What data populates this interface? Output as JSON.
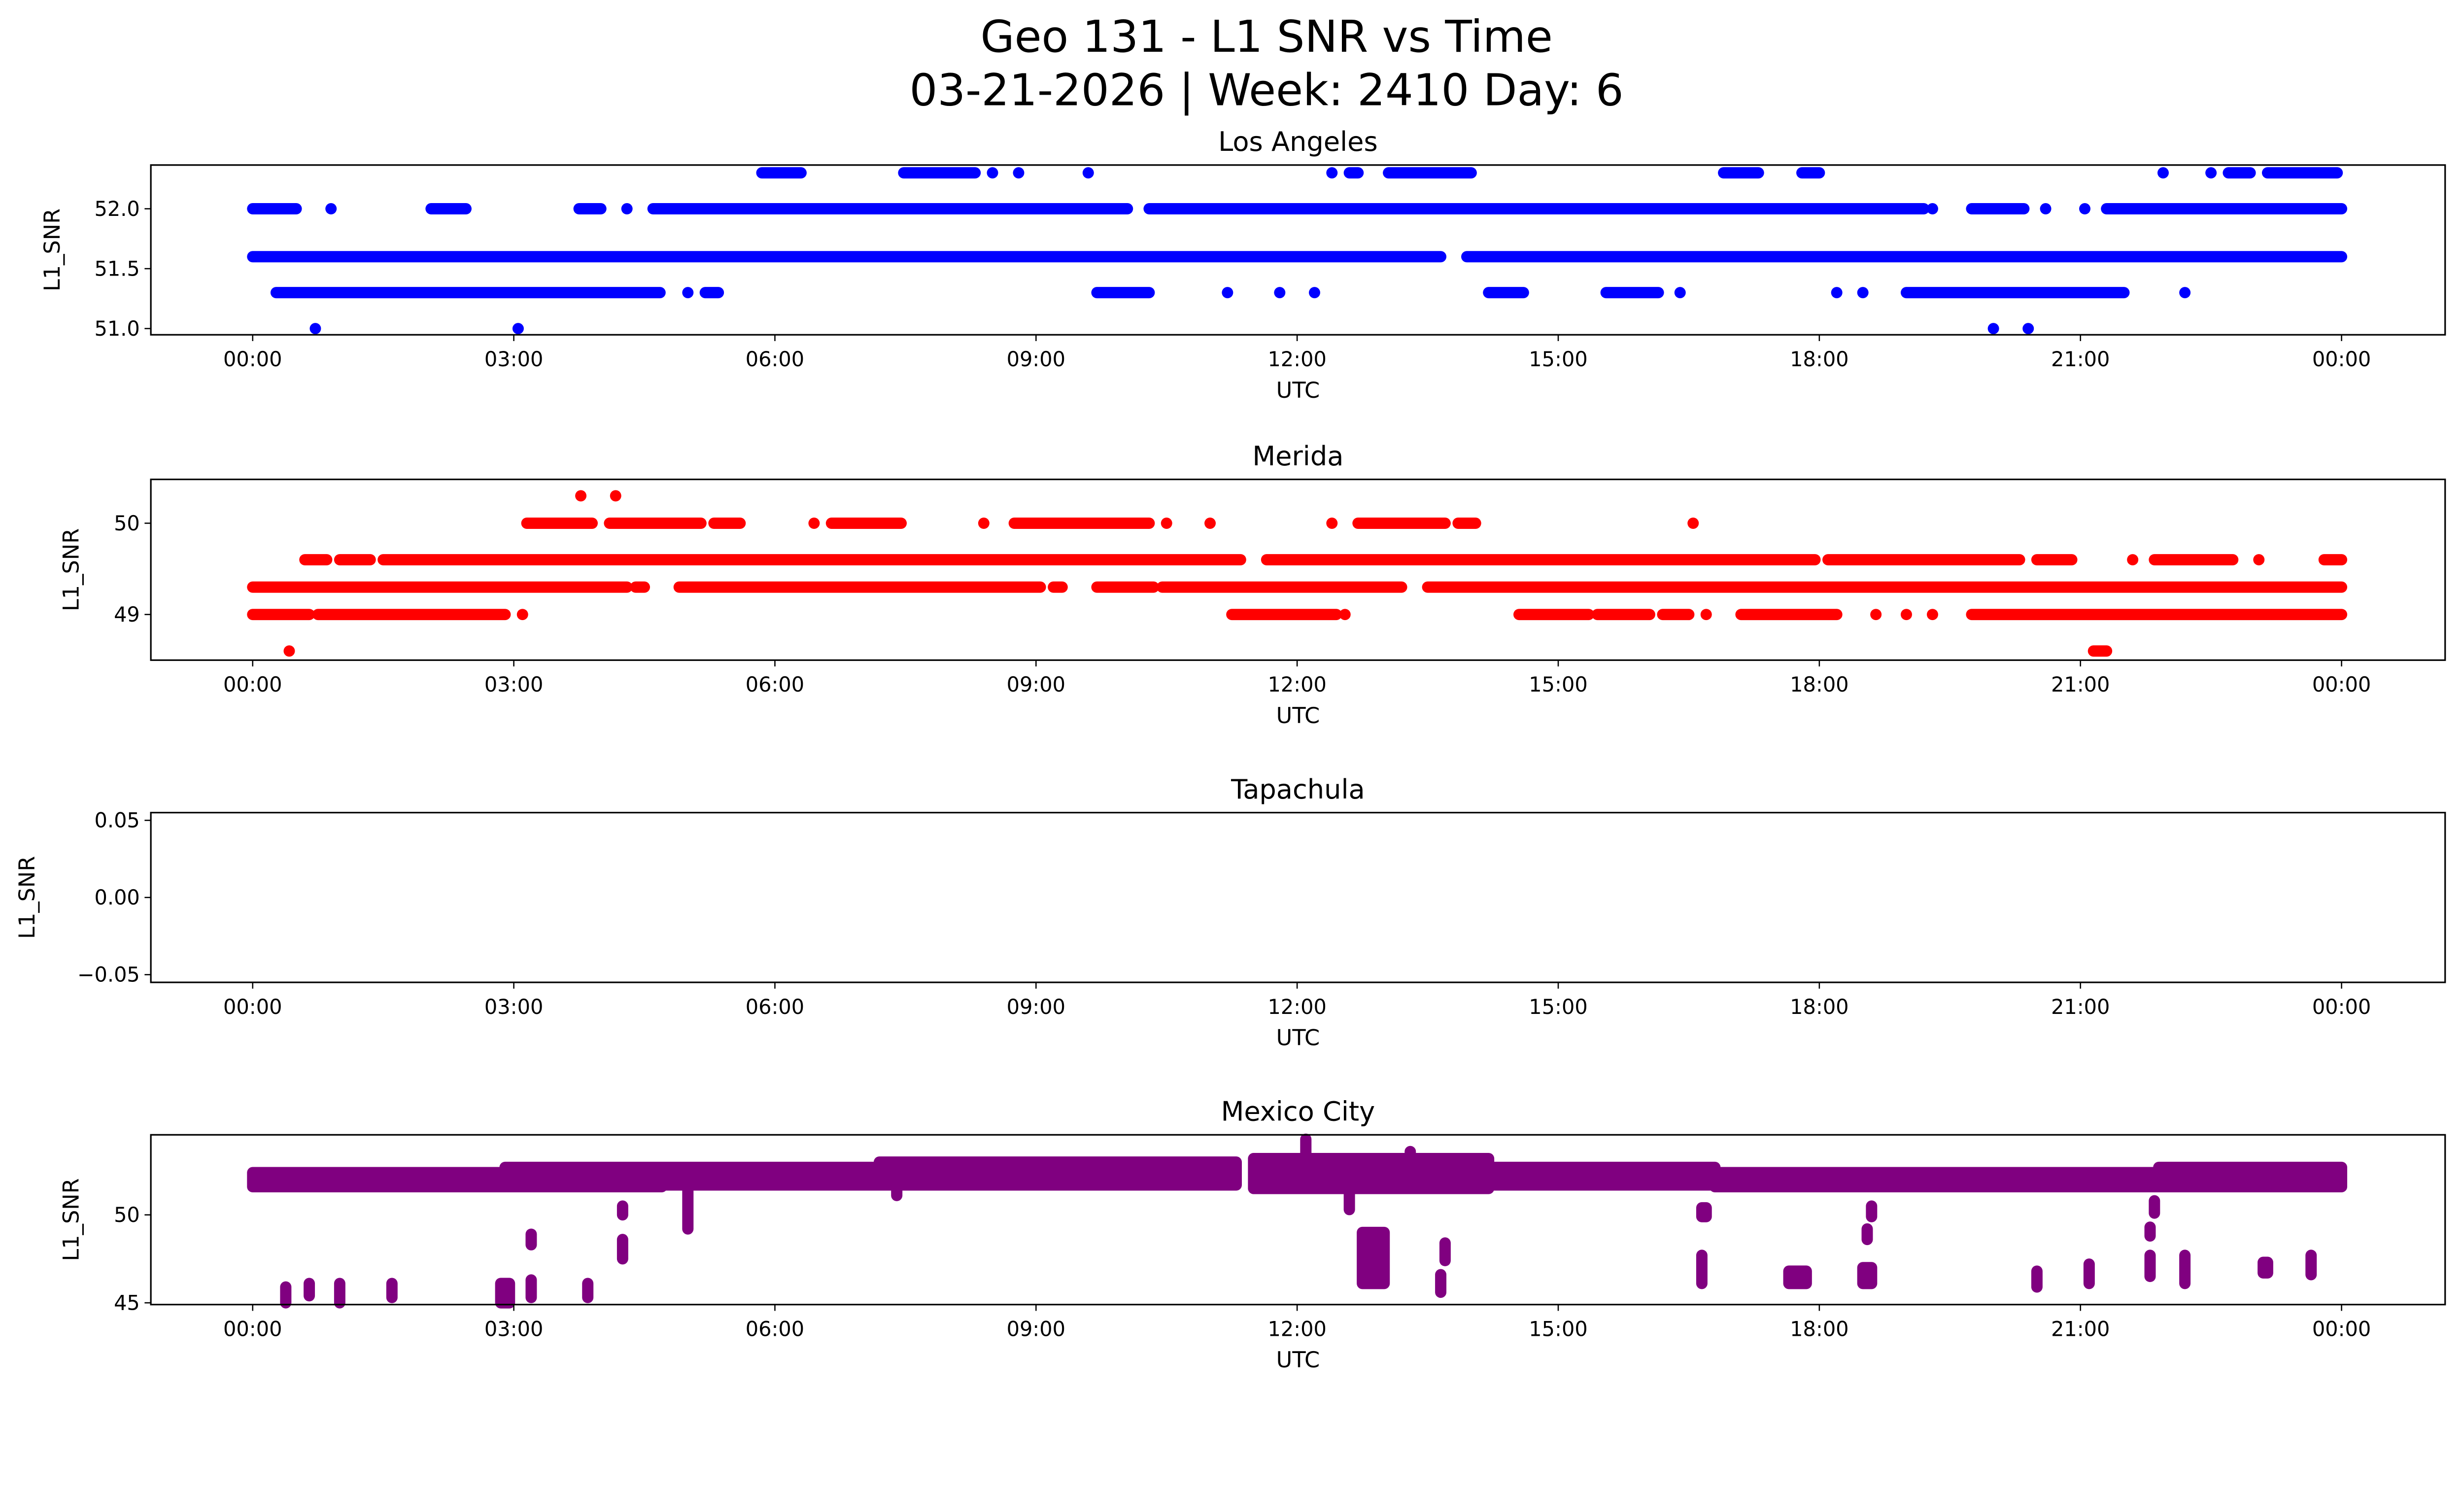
{
  "chart_data": {
    "type": "scatter",
    "title": "Geo 131 - L1 SNR vs Time",
    "subtitle": "03-21-2026 | Week: 2410 Day: 6",
    "x_unit": "hours UTC",
    "xlim": [
      -1.17,
      25.19
    ],
    "x_ticks": [
      0,
      3,
      6,
      9,
      12,
      15,
      18,
      21,
      24
    ],
    "x_tick_labels": [
      "00:00",
      "03:00",
      "06:00",
      "09:00",
      "12:00",
      "15:00",
      "18:00",
      "21:00",
      "00:00"
    ],
    "grid": false,
    "panels": [
      {
        "title": "Los Angeles",
        "xlabel": "UTC",
        "ylabel": "L1_SNR",
        "color": "#0000ff",
        "ylim": [
          50.948,
          52.365
        ],
        "y_ticks": [
          51.0,
          51.5,
          52.0
        ],
        "y_tick_labels": [
          "51.0",
          "51.5",
          "52.0"
        ],
        "runs": [
          {
            "y": 52.3,
            "x": [
              [
                5.85,
                6.3
              ],
              [
                7.48,
                8.3
              ],
              [
                8.5,
                8.5
              ],
              [
                8.8,
                8.8
              ],
              [
                9.6,
                9.6
              ],
              [
                12.4,
                12.4
              ],
              [
                12.6,
                12.7
              ],
              [
                13.05,
                14.0
              ],
              [
                16.9,
                17.3
              ],
              [
                17.8,
                18.0
              ],
              [
                21.95,
                21.95
              ],
              [
                22.5,
                22.5
              ],
              [
                22.7,
                22.95
              ],
              [
                23.15,
                23.95
              ]
            ]
          },
          {
            "y": 52.0,
            "x": [
              [
                0,
                0.5
              ],
              [
                0.9,
                0.9
              ],
              [
                2.05,
                2.45
              ],
              [
                3.75,
                4.0
              ],
              [
                4.3,
                4.3
              ],
              [
                4.6,
                10.05
              ],
              [
                10.3,
                19.2
              ],
              [
                19.3,
                19.3
              ],
              [
                19.75,
                20.35
              ],
              [
                20.6,
                20.6
              ],
              [
                21.05,
                21.05
              ],
              [
                21.3,
                24.0
              ]
            ]
          },
          {
            "y": 51.6,
            "x": [
              [
                0,
                13.65
              ],
              [
                13.95,
                24.0
              ]
            ]
          },
          {
            "y": 51.3,
            "x": [
              [
                0.27,
                4.68
              ],
              [
                5.0,
                5.0
              ],
              [
                5.2,
                5.35
              ],
              [
                9.7,
                10.3
              ],
              [
                11.2,
                11.2
              ],
              [
                11.8,
                11.8
              ],
              [
                12.2,
                12.2
              ],
              [
                14.2,
                14.6
              ],
              [
                15.55,
                16.15
              ],
              [
                16.4,
                16.4
              ],
              [
                18.2,
                18.2
              ],
              [
                18.5,
                18.5
              ],
              [
                19.0,
                21.5
              ],
              [
                22.2,
                22.2
              ]
            ]
          },
          {
            "y": 51.0,
            "x": [
              [
                0.72,
                0.72
              ],
              [
                3.05,
                3.05
              ],
              [
                20.0,
                20.0
              ],
              [
                20.4,
                20.4
              ]
            ]
          }
        ]
      },
      {
        "title": "Merida",
        "xlabel": "UTC",
        "ylabel": "L1_SNR",
        "color": "#ff0000",
        "ylim": [
          48.5,
          50.48
        ],
        "y_ticks": [
          49,
          50
        ],
        "y_tick_labels": [
          "49",
          "50"
        ],
        "runs": [
          {
            "y": 50.3,
            "x": [
              [
                3.77,
                3.77
              ],
              [
                4.17,
                4.17
              ]
            ]
          },
          {
            "y": 50.0,
            "x": [
              [
                3.15,
                3.9
              ],
              [
                4.1,
                5.15
              ],
              [
                5.3,
                5.6
              ],
              [
                6.45,
                6.45
              ],
              [
                6.65,
                7.45
              ],
              [
                8.4,
                8.4
              ],
              [
                8.75,
                10.3
              ],
              [
                10.5,
                10.5
              ],
              [
                11.0,
                11.0
              ],
              [
                12.4,
                12.4
              ],
              [
                12.7,
                13.7
              ],
              [
                13.85,
                14.05
              ],
              [
                16.55,
                16.55
              ]
            ]
          },
          {
            "y": 49.6,
            "x": [
              [
                0.6,
                0.85
              ],
              [
                1.0,
                1.35
              ],
              [
                1.5,
                11.35
              ],
              [
                11.65,
                17.95
              ],
              [
                18.1,
                20.3
              ],
              [
                20.5,
                20.9
              ],
              [
                21.6,
                21.6
              ],
              [
                21.85,
                22.75
              ],
              [
                23.05,
                23.05
              ],
              [
                23.8,
                24.0
              ]
            ]
          },
          {
            "y": 49.3,
            "x": [
              [
                0,
                4.3
              ],
              [
                4.4,
                4.5
              ],
              [
                4.9,
                9.05
              ],
              [
                9.2,
                9.3
              ],
              [
                9.7,
                10.35
              ],
              [
                10.45,
                13.2
              ],
              [
                13.5,
                24.0
              ]
            ]
          },
          {
            "y": 49.0,
            "x": [
              [
                0,
                0.65
              ],
              [
                0.75,
                2.9
              ],
              [
                3.1,
                3.1
              ],
              [
                11.25,
                12.45
              ],
              [
                12.55,
                12.55
              ],
              [
                14.55,
                15.35
              ],
              [
                15.45,
                16.05
              ],
              [
                16.2,
                16.5
              ],
              [
                16.7,
                16.7
              ],
              [
                17.1,
                18.2
              ],
              [
                18.65,
                18.65
              ],
              [
                19.0,
                19.0
              ],
              [
                19.3,
                19.3
              ],
              [
                19.75,
                24.0
              ]
            ]
          },
          {
            "y": 48.6,
            "x": [
              [
                0.42,
                0.42
              ],
              [
                21.15,
                21.3
              ]
            ]
          }
        ]
      },
      {
        "title": "Tapachula",
        "xlabel": "UTC",
        "ylabel": "L1_SNR",
        "color": "#0000ff",
        "ylim": [
          -0.055,
          0.055
        ],
        "y_ticks": [
          -0.05,
          0.0,
          0.05
        ],
        "y_tick_labels": [
          "−0.05",
          "0.00",
          "0.05"
        ],
        "runs": []
      },
      {
        "title": "Mexico City",
        "xlabel": "UTC",
        "ylabel": "L1_SNR",
        "color": "#800080",
        "ylim": [
          44.9,
          54.55
        ],
        "y_ticks": [
          45,
          50
        ],
        "y_tick_labels": [
          "45",
          "50"
        ],
        "clusters": [
          {
            "x": [
              0,
              4.7
            ],
            "y": [
              51.6,
              52.4
            ]
          },
          {
            "x": [
              2.9,
              9.8
            ],
            "y": [
              51.7,
              52.7
            ]
          },
          {
            "x": [
              7.2,
              11.3
            ],
            "y": [
              51.7,
              53.0
            ]
          },
          {
            "x": [
              11.5,
              14.2
            ],
            "y": [
              51.5,
              53.2
            ]
          },
          {
            "x": [
              12.1,
              12.1
            ],
            "y": [
              52.5,
              54.3
            ]
          },
          {
            "x": [
              13.3,
              13.3
            ],
            "y": [
              52.5,
              53.6
            ]
          },
          {
            "x": [
              14.2,
              16.8
            ],
            "y": [
              51.7,
              52.7
            ]
          },
          {
            "x": [
              16.8,
              21.9
            ],
            "y": [
              51.6,
              52.4
            ]
          },
          {
            "x": [
              21.9,
              24.0
            ],
            "y": [
              51.6,
              52.7
            ]
          },
          {
            "x": [
              0.38,
              0.38
            ],
            "y": [
              45.0,
              45.9
            ]
          },
          {
            "x": [
              0.65,
              0.65
            ],
            "y": [
              45.4,
              46.1
            ]
          },
          {
            "x": [
              1.0,
              1.0
            ],
            "y": [
              45.0,
              46.1
            ]
          },
          {
            "x": [
              1.6,
              1.6
            ],
            "y": [
              45.3,
              46.1
            ]
          },
          {
            "x": [
              2.85,
              2.95
            ],
            "y": [
              45.0,
              46.1
            ]
          },
          {
            "x": [
              3.2,
              3.2
            ],
            "y": [
              45.3,
              46.3
            ]
          },
          {
            "x": [
              3.2,
              3.2
            ],
            "y": [
              48.3,
              48.9
            ]
          },
          {
            "x": [
              3.85,
              3.85
            ],
            "y": [
              45.3,
              46.1
            ]
          },
          {
            "x": [
              4.25,
              4.25
            ],
            "y": [
              47.5,
              48.6
            ]
          },
          {
            "x": [
              4.25,
              4.25
            ],
            "y": [
              50.0,
              50.5
            ]
          },
          {
            "x": [
              5.0,
              5.0
            ],
            "y": [
              49.2,
              51.5
            ]
          },
          {
            "x": [
              7.4,
              7.4
            ],
            "y": [
              51.1,
              51.6
            ]
          },
          {
            "x": [
              12.6,
              12.6
            ],
            "y": [
              50.3,
              51.5
            ]
          },
          {
            "x": [
              12.75,
              13.0
            ],
            "y": [
              46.1,
              49.0
            ]
          },
          {
            "x": [
              13.65,
              13.65
            ],
            "y": [
              45.6,
              46.6
            ]
          },
          {
            "x": [
              13.7,
              13.7
            ],
            "y": [
              47.4,
              48.4
            ]
          },
          {
            "x": [
              16.65,
              16.65
            ],
            "y": [
              46.1,
              47.7
            ]
          },
          {
            "x": [
              16.65,
              16.7
            ],
            "y": [
              49.9,
              50.4
            ]
          },
          {
            "x": [
              17.65,
              17.85
            ],
            "y": [
              46.1,
              46.8
            ]
          },
          {
            "x": [
              18.5,
              18.6
            ],
            "y": [
              46.1,
              47.0
            ]
          },
          {
            "x": [
              18.55,
              18.55
            ],
            "y": [
              48.6,
              49.2
            ]
          },
          {
            "x": [
              18.6,
              18.6
            ],
            "y": [
              49.9,
              50.5
            ]
          },
          {
            "x": [
              20.5,
              20.5
            ],
            "y": [
              45.9,
              46.8
            ]
          },
          {
            "x": [
              21.1,
              21.1
            ],
            "y": [
              46.1,
              47.2
            ]
          },
          {
            "x": [
              21.8,
              21.8
            ],
            "y": [
              46.5,
              47.7
            ]
          },
          {
            "x": [
              21.8,
              21.8
            ],
            "y": [
              48.8,
              49.3
            ]
          },
          {
            "x": [
              21.85,
              21.85
            ],
            "y": [
              50.1,
              50.8
            ]
          },
          {
            "x": [
              22.2,
              22.2
            ],
            "y": [
              46.1,
              47.7
            ]
          },
          {
            "x": [
              23.1,
              23.15
            ],
            "y": [
              46.7,
              47.3
            ]
          },
          {
            "x": [
              23.65,
              23.65
            ],
            "y": [
              46.6,
              47.7
            ]
          }
        ]
      }
    ]
  }
}
